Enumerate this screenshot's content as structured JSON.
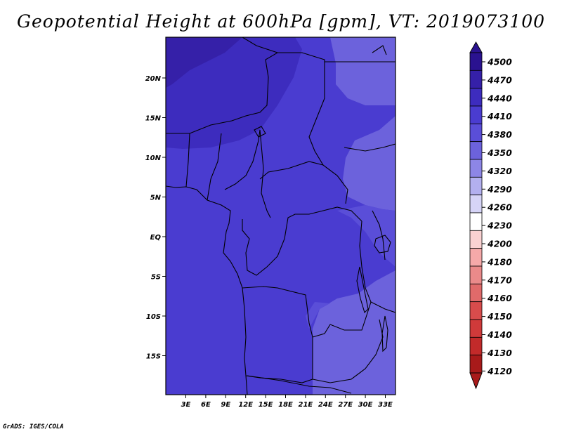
{
  "title": "Geopotential Height at 600hPa [gpm], VT: 2019073100",
  "credit": "GrADS: IGES/COLA",
  "map": {
    "lon_labels": [
      "3E",
      "6E",
      "9E",
      "12E",
      "15E",
      "18E",
      "21E",
      "24E",
      "27E",
      "30E",
      "33E"
    ],
    "lat_labels": [
      "20N",
      "15N",
      "10N",
      "5N",
      "EQ",
      "5S",
      "10S",
      "15S"
    ],
    "colors": {
      "field_base": "#4a3cd0",
      "field_high": "#3a2ab8",
      "field_low": "#6c62dc",
      "land_border": "#000000"
    }
  },
  "colorbar": {
    "labels": [
      "4500",
      "4470",
      "4440",
      "4410",
      "4380",
      "4350",
      "4320",
      "4290",
      "4260",
      "4230",
      "4200",
      "4180",
      "4170",
      "4160",
      "4150",
      "4140",
      "4130",
      "4120"
    ],
    "colors": [
      "#2a1290",
      "#3520a8",
      "#3d2cbe",
      "#4a3cd0",
      "#5a4ed8",
      "#6c62dc",
      "#8d86e6",
      "#b3b0ef",
      "#d6d4f7",
      "#ffffff",
      "#fad2d2",
      "#f5a9a9",
      "#ea8a8a",
      "#e06a6a",
      "#d84c4c",
      "#d03a3a",
      "#c22a2a",
      "#a81a1a"
    ]
  }
}
